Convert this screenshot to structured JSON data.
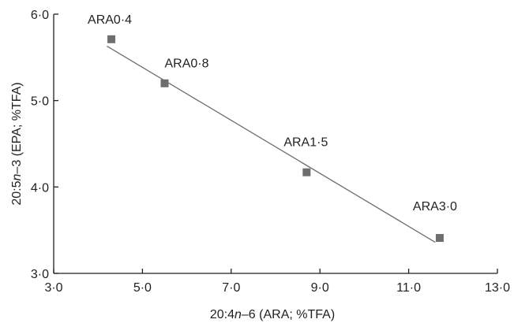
{
  "chart_data": {
    "type": "scatter",
    "title": "",
    "xlabel": {
      "prefix": "20:4",
      "italic": "n",
      "suffix": "–6 (ARA; %TFA)"
    },
    "ylabel": {
      "prefix": "20:5",
      "italic": "n",
      "suffix": "–3 (EPA; %TFA)"
    },
    "xlim": [
      3.0,
      13.0
    ],
    "ylim": [
      3.0,
      6.0
    ],
    "x_ticks": [
      {
        "value": 3.0,
        "label": "3·0"
      },
      {
        "value": 5.0,
        "label": "5·0"
      },
      {
        "value": 7.0,
        "label": "7·0"
      },
      {
        "value": 9.0,
        "label": "9·0"
      },
      {
        "value": 11.0,
        "label": "11·0"
      },
      {
        "value": 13.0,
        "label": "13·0"
      }
    ],
    "y_ticks": [
      {
        "value": 3.0,
        "label": "3·0"
      },
      {
        "value": 4.0,
        "label": "4·0"
      },
      {
        "value": 5.0,
        "label": "5·0"
      },
      {
        "value": 6.0,
        "label": "6·0"
      }
    ],
    "grid": false,
    "marker_color": "#6d6e70",
    "trend_color": "#6d6e70",
    "points": [
      {
        "label": "ARA0·4",
        "x": 4.3,
        "y": 5.71
      },
      {
        "label": "ARA0·8",
        "x": 5.5,
        "y": 5.2
      },
      {
        "label": "ARA1·5",
        "x": 8.7,
        "y": 4.17
      },
      {
        "label": "ARA3·0",
        "x": 11.7,
        "y": 3.41
      }
    ],
    "trendline": {
      "x": [
        4.2,
        11.6
      ],
      "y": [
        5.63,
        3.36
      ]
    }
  }
}
